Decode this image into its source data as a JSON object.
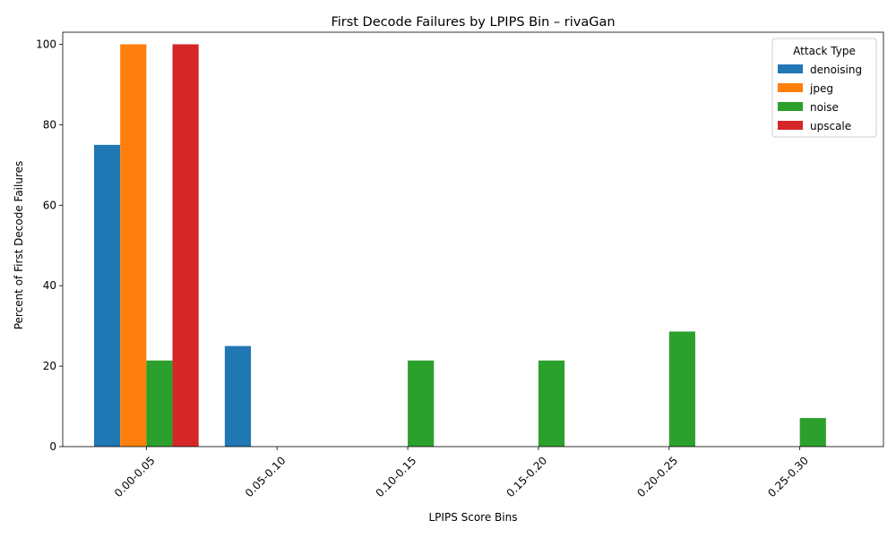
{
  "chart_data": {
    "type": "bar",
    "title": "First Decode Failures by LPIPS Bin – rivaGan",
    "xlabel": "LPIPS Score Bins",
    "ylabel": "Percent of First Decode Failures",
    "categories": [
      "0.00-0.05",
      "0.05-0.10",
      "0.10-0.15",
      "0.15-0.20",
      "0.20-0.25",
      "0.25-0.30"
    ],
    "ylim": [
      0,
      103
    ],
    "yticks": [
      0,
      20,
      40,
      60,
      80,
      100
    ],
    "grid": false,
    "legend": {
      "title": "Attack Type",
      "placement": "top-right"
    },
    "series": [
      {
        "name": "denoising",
        "color": "#1f77b4",
        "values": [
          75,
          25,
          0,
          0,
          0,
          0
        ]
      },
      {
        "name": "jpeg",
        "color": "#ff7f0e",
        "values": [
          100,
          0,
          0,
          0,
          0,
          0
        ]
      },
      {
        "name": "noise",
        "color": "#2ca02c",
        "values": [
          21.4,
          0,
          21.4,
          21.4,
          28.6,
          7.1
        ]
      },
      {
        "name": "upscale",
        "color": "#d62728",
        "values": [
          100,
          0,
          0,
          0,
          0,
          0
        ]
      }
    ]
  }
}
